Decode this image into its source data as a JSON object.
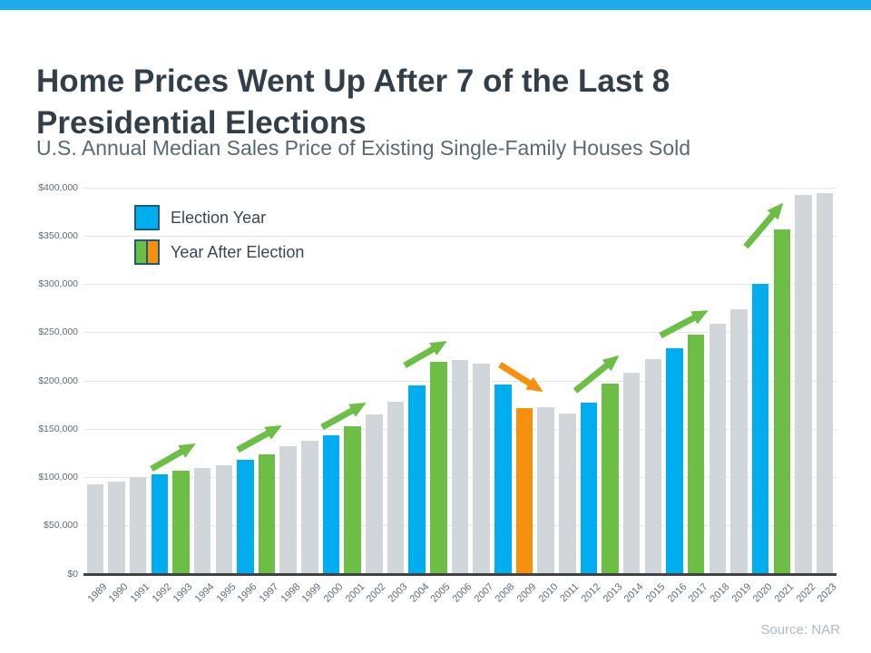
{
  "page": {
    "title_line1": "Home Prices Went Up After 7 of the Last 8",
    "title_line2": "Presidential Elections",
    "subtitle": "U.S. Annual Median Sales Price of Existing Single-Family Houses Sold",
    "source": "Source: NAR"
  },
  "legend": {
    "items": [
      {
        "label": "Election Year",
        "type": "solid"
      },
      {
        "label": "Year After Election",
        "type": "split"
      }
    ]
  },
  "chart_data": {
    "type": "bar",
    "title": "Home Prices Went Up After 7 of the Last 8 Presidential Elections",
    "subtitle": "U.S. Annual Median Sales Price of Existing Single-Family Houses Sold",
    "xlabel": "",
    "ylabel": "",
    "ylim": [
      0,
      400000
    ],
    "ytick_step": 50000,
    "ytick_labels": [
      "$0",
      "$50,000",
      "$100,000",
      "$150,000",
      "$200,000",
      "$250,000",
      "$300,000",
      "$350,000",
      "$400,000"
    ],
    "grid": true,
    "legend_position": "top-left",
    "source": "NAR",
    "categories": [
      "1989",
      "1990",
      "1991",
      "1992",
      "1993",
      "1994",
      "1995",
      "1996",
      "1997",
      "1998",
      "1999",
      "2000",
      "2001",
      "2002",
      "2003",
      "2004",
      "2005",
      "2006",
      "2007",
      "2008",
      "2009",
      "2010",
      "2011",
      "2012",
      "2013",
      "2014",
      "2015",
      "2016",
      "2017",
      "2018",
      "2019",
      "2020",
      "2021",
      "2022",
      "2023"
    ],
    "values": [
      93100,
      95500,
      100300,
      103700,
      106800,
      109900,
      113100,
      118200,
      124100,
      132800,
      138000,
      143600,
      153100,
      165000,
      178800,
      195400,
      219600,
      221900,
      217900,
      196600,
      172100,
      173100,
      166200,
      177200,
      197100,
      208300,
      222400,
      233800,
      247600,
      259300,
      274600,
      300200,
      357100,
      392800,
      394300
    ],
    "roles": [
      "default",
      "default",
      "default",
      "election",
      "after_up",
      "default",
      "default",
      "election",
      "after_up",
      "default",
      "default",
      "election",
      "after_up",
      "default",
      "default",
      "election",
      "after_up",
      "default",
      "default",
      "election",
      "after_down",
      "default",
      "default",
      "election",
      "after_up",
      "default",
      "default",
      "election",
      "after_up",
      "default",
      "default",
      "election",
      "after_up",
      "default",
      "default"
    ],
    "colors": {
      "election": "#00AEEF",
      "after_up": "#6CBE45",
      "after_down": "#F8900D",
      "default": "#D0D6D9",
      "up_arrow": "#6CBE45",
      "down_arrow": "#F8900D",
      "grid": "#E3E7E9",
      "axis": "#3E4347",
      "accent_strip": "#1BABEA"
    },
    "annotations": [
      {
        "kind": "up",
        "pair": [
          "1992",
          "1993"
        ],
        "from": [
          167,
          517
        ],
        "to": [
          214,
          490
        ]
      },
      {
        "kind": "up",
        "pair": [
          "1996",
          "1997"
        ],
        "from": [
          262,
          496
        ],
        "to": [
          309,
          470
        ]
      },
      {
        "kind": "up",
        "pair": [
          "2000",
          "2001"
        ],
        "from": [
          355,
          471
        ],
        "to": [
          402,
          445
        ]
      },
      {
        "kind": "up",
        "pair": [
          "2004",
          "2005"
        ],
        "from": [
          446,
          403
        ],
        "to": [
          491,
          377
        ]
      },
      {
        "kind": "down",
        "pair": [
          "2008",
          "2009"
        ],
        "from": [
          551,
          402
        ],
        "to": [
          597,
          431
        ]
      },
      {
        "kind": "up",
        "pair": [
          "2012",
          "2013"
        ],
        "from": [
          634,
          431
        ],
        "to": [
          681,
          393
        ]
      },
      {
        "kind": "up",
        "pair": [
          "2016",
          "2017"
        ],
        "from": [
          728,
          370
        ],
        "to": [
          779,
          343
        ]
      },
      {
        "kind": "up",
        "pair": [
          "2020",
          "2021"
        ],
        "from": [
          822,
          272
        ],
        "to": [
          862,
          225
        ]
      }
    ]
  }
}
